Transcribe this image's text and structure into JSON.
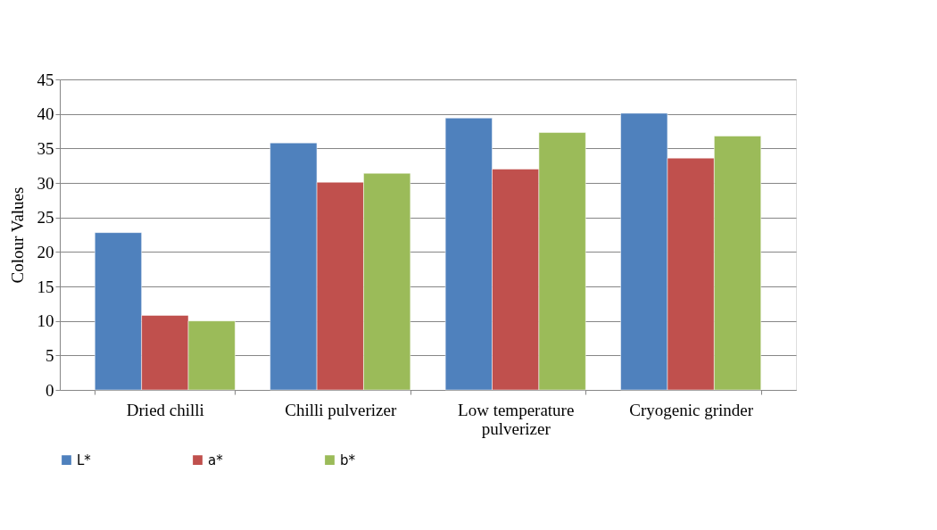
{
  "chart_data": {
    "type": "bar",
    "ylabel": "Colour Values",
    "categories": [
      "Dried chilli",
      "Chilli pulverizer",
      "Low temperature pulverizer",
      "Cryogenic grinder"
    ],
    "series": [
      {
        "name": "L*",
        "color": "#4f81bd",
        "values": [
          22.8,
          35.8,
          39.4,
          40.1
        ]
      },
      {
        "name": "a*",
        "color": "#c0504d",
        "values": [
          10.8,
          30.1,
          32.0,
          33.6
        ]
      },
      {
        "name": "b*",
        "color": "#9bbb59",
        "values": [
          10.0,
          31.4,
          37.3,
          36.8
        ]
      }
    ],
    "ylim": [
      0,
      45
    ],
    "yticks": [
      0,
      5,
      10,
      15,
      20,
      25,
      30,
      35,
      40,
      45
    ],
    "grid": "y",
    "legend": "bottom"
  }
}
